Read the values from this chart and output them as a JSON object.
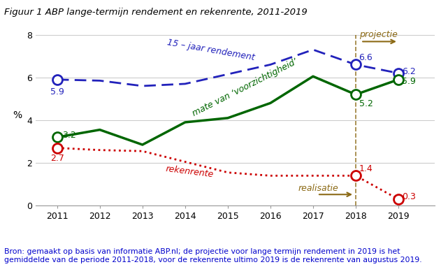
{
  "title": "Figuur 1 ABP lange-termijn rendement en rekenrente, 2011-2019",
  "source_text_line1": "Bron: gemaakt op basis van informatie ABP.nl; de projectie voor lange termijn rendement in 2019 is het",
  "source_text_line2": "gemiddelde van de periode 2011-2018, voor de rekenrente ultimo 2019 is de rekenrente van augustus 2019.",
  "years": [
    2011,
    2012,
    2013,
    2014,
    2015,
    2016,
    2017,
    2018,
    2019
  ],
  "rendement_15jaar": [
    5.9,
    5.85,
    5.6,
    5.7,
    6.15,
    6.6,
    7.3,
    6.6,
    6.2
  ],
  "mate_van_voorzichtigheid": [
    3.2,
    3.55,
    2.85,
    3.9,
    4.1,
    4.8,
    6.05,
    5.2,
    5.9
  ],
  "rekenrente": [
    2.7,
    2.6,
    2.55,
    2.05,
    1.55,
    1.4,
    1.4,
    1.4,
    0.3
  ],
  "highlight_years_rendement": [
    2011,
    2018,
    2019
  ],
  "highlight_values_rendement": [
    5.9,
    6.6,
    6.2
  ],
  "highlight_years_mate": [
    2011,
    2018,
    2019
  ],
  "highlight_values_mate": [
    3.2,
    5.2,
    5.9
  ],
  "highlight_years_rekenrente": [
    2011,
    2018,
    2019
  ],
  "highlight_values_rekenrente": [
    2.7,
    1.4,
    0.3
  ],
  "color_rendement": "#2222bb",
  "color_mate": "#006600",
  "color_rekenrente": "#cc0000",
  "color_projectie_line": "#8B6914",
  "color_source": "#0000cc",
  "ylim": [
    0,
    8
  ],
  "yticks": [
    0,
    2,
    4,
    6,
    8
  ],
  "ylabel": "%",
  "background_color": "#ffffff"
}
